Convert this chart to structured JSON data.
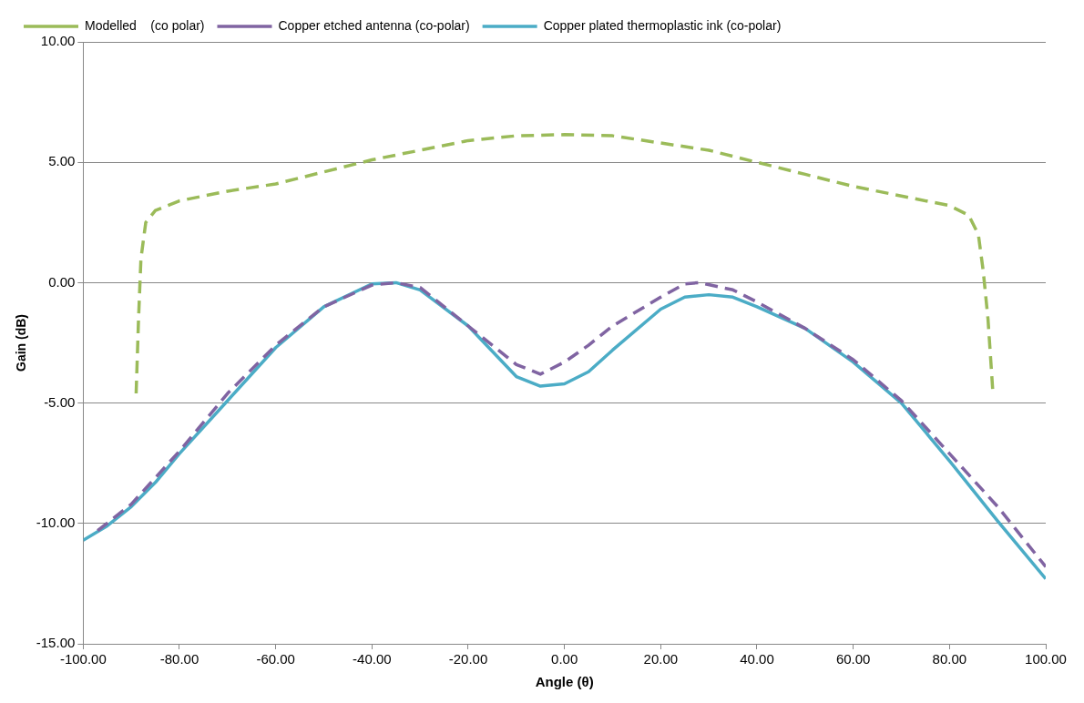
{
  "chart_data": {
    "type": "line",
    "xlabel": "Angle (θ)",
    "ylabel": "Gain (dB)",
    "xlim": [
      -100,
      100
    ],
    "ylim": [
      -15,
      10
    ],
    "xticks": [
      {
        "value": -100,
        "label": "-100.00"
      },
      {
        "value": -80,
        "label": "-80.00"
      },
      {
        "value": -60,
        "label": "-60.00"
      },
      {
        "value": -40,
        "label": "-40.00"
      },
      {
        "value": -20,
        "label": "-20.00"
      },
      {
        "value": 0,
        "label": "0.00"
      },
      {
        "value": 20,
        "label": "20.00"
      },
      {
        "value": 40,
        "label": "40.00"
      },
      {
        "value": 60,
        "label": "60.00"
      },
      {
        "value": 80,
        "label": "80.00"
      },
      {
        "value": 100,
        "label": "100.00"
      }
    ],
    "yticks": [
      {
        "value": -15,
        "label": "-15.00"
      },
      {
        "value": -10,
        "label": "-10.00"
      },
      {
        "value": -5,
        "label": "-5.00"
      },
      {
        "value": 0,
        "label": "0.00"
      },
      {
        "value": 5,
        "label": "5.00"
      },
      {
        "value": 10,
        "label": "10.00"
      }
    ],
    "grid": "y",
    "legend": "top",
    "marker": "none",
    "series": [
      {
        "name": "Modelled    (co polar)",
        "color": "#9bbb59",
        "line_style": "dashed",
        "x": [
          -89,
          -88.5,
          -88,
          -87,
          -85,
          -80,
          -70,
          -60,
          -50,
          -40,
          -30,
          -20,
          -10,
          0,
          10,
          20,
          30,
          40,
          50,
          60,
          70,
          80,
          84,
          86,
          87,
          88,
          89
        ],
        "values": [
          -4.6,
          -1.5,
          1,
          2.5,
          3,
          3.4,
          3.8,
          4.1,
          4.6,
          5.1,
          5.5,
          5.9,
          6.1,
          6.15,
          6.1,
          5.8,
          5.5,
          5,
          4.5,
          4,
          3.6,
          3.2,
          2.8,
          2,
          0.5,
          -1.5,
          -4.5
        ]
      },
      {
        "name": "Copper etched antenna (co-polar)",
        "color": "#8064a2",
        "line_style": "dashed",
        "x": [
          -97,
          -90,
          -80,
          -70,
          -60,
          -50,
          -40,
          -35,
          -30,
          -20,
          -10,
          -5,
          0,
          5,
          10,
          20,
          25,
          28,
          35,
          40,
          50,
          60,
          70,
          80,
          90,
          100
        ],
        "values": [
          -10.3,
          -9.2,
          -7,
          -4.6,
          -2.6,
          -1,
          -0.1,
          0,
          -0.2,
          -1.8,
          -3.4,
          -3.8,
          -3.3,
          -2.6,
          -1.8,
          -0.6,
          -0.05,
          0,
          -0.3,
          -0.8,
          -1.9,
          -3.2,
          -4.9,
          -7.1,
          -9.3,
          -11.8
        ]
      },
      {
        "name": "Copper plated thermoplastic ink (co-polar)",
        "color": "#4bacc6",
        "line_style": "solid",
        "x": [
          -100,
          -95,
          -90,
          -85,
          -80,
          -70,
          -60,
          -50,
          -40,
          -35,
          -30,
          -20,
          -10,
          -5,
          0,
          5,
          10,
          20,
          25,
          30,
          35,
          40,
          50,
          60,
          70,
          80,
          90,
          100
        ],
        "values": [
          -10.7,
          -10.1,
          -9.3,
          -8.3,
          -7.1,
          -4.9,
          -2.7,
          -1,
          -0.05,
          0,
          -0.3,
          -1.8,
          -3.9,
          -4.3,
          -4.2,
          -3.7,
          -2.8,
          -1.1,
          -0.6,
          -0.5,
          -0.6,
          -1,
          -1.9,
          -3.3,
          -5,
          -7.4,
          -9.9,
          -12.3
        ]
      }
    ]
  }
}
